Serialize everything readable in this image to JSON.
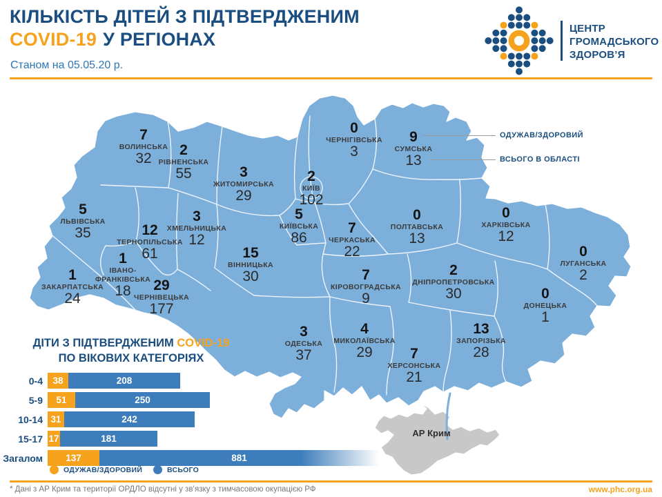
{
  "header": {
    "title_line1": "КІЛЬКІСТЬ ДІТЕЙ З ПІДТВЕРДЖЕНИМ",
    "title_covid": "COVID-19",
    "title_line2_rest": "У РЕГІОНАХ",
    "subtitle": "Станом на 05.05.20 р.",
    "logo_line1": "ЦЕНТР",
    "logo_line2": "ГРОМАДСЬКОГО",
    "logo_line3": "ЗДОРОВ’Я"
  },
  "map": {
    "callout_recovered": "ОДУЖАВ/ЗДОРОВИЙ",
    "callout_total": "ВСЬОГО В ОБЛАСТІ",
    "crimea_label": "АР Крим"
  },
  "age_chart": {
    "title_prefix": "ДІТИ З ПІДТВЕРДЖЕНИМ",
    "title_covid": "COVID-19",
    "title_line2": "ПО ВІКОВИХ КАТЕГОРІЯХ"
  },
  "footer": {
    "note": "* Дані з АР Крим та території ОРДЛО відсутні у зв’язку з тимчасовою окупацією РФ",
    "website": "www.phc.org.ua"
  },
  "colors": {
    "accent_orange": "#F7A21C",
    "dark_blue": "#1B4E80",
    "bar_blue": "#3D7DBB",
    "map_blue": "#7DAFDB",
    "crimea_gray": "#C8C8C8"
  },
  "chart_data": [
    {
      "type": "table",
      "title": "КІЛЬКІСТЬ ДІТЕЙ З ПІДТВЕРДЖЕНИМ COVID-19 У РЕГІОНАХ — станом на 05.05.20",
      "columns": [
        "регіон",
        "одужав/здоровий",
        "всього в області"
      ],
      "rows": [
        [
          "ВОЛИНСЬКА",
          7,
          32
        ],
        [
          "РІВНЕНСЬКА",
          2,
          55
        ],
        [
          "ЖИТОМИРСЬКА",
          3,
          29
        ],
        [
          "ЧЕРНІГІВСЬКА",
          0,
          3
        ],
        [
          "СУМСЬКА",
          9,
          13
        ],
        [
          "КИЇВ",
          2,
          102
        ],
        [
          "КИЇВСЬКА",
          5,
          86
        ],
        [
          "ЛЬВІВСЬКА",
          5,
          35
        ],
        [
          "ХМЕЛЬНИЦЬКА",
          3,
          12
        ],
        [
          "ТЕРНОПІЛЬСЬКА",
          12,
          61
        ],
        [
          "ІВАНО-ФРАНКІВСЬКА",
          1,
          18
        ],
        [
          "ЗАКАРПАТСЬКА",
          1,
          24
        ],
        [
          "ЧЕРНІВЕЦЬКА",
          29,
          177
        ],
        [
          "ВІННИЦЬКА",
          15,
          30
        ],
        [
          "ЧЕРКАСЬКА",
          7,
          22
        ],
        [
          "ПОЛТАВСЬКА",
          0,
          13
        ],
        [
          "ХАРКІВСЬКА",
          0,
          12
        ],
        [
          "ЛУГАНСЬКА",
          0,
          2
        ],
        [
          "ДНІПРОПЕТРОВСЬКА",
          2,
          30
        ],
        [
          "ДОНЕЦЬКА",
          0,
          1
        ],
        [
          "КІРОВОГРАДСЬКА",
          7,
          9
        ],
        [
          "ОДЕСЬКА",
          3,
          37
        ],
        [
          "МИКОЛАЇВСЬКА",
          4,
          29
        ],
        [
          "ЗАПОРІЗЬКА",
          13,
          28
        ],
        [
          "ХЕРСОНСЬКА",
          7,
          21
        ]
      ]
    },
    {
      "type": "bar",
      "orientation": "horizontal",
      "title": "ДІТИ З ПІДТВЕРДЖЕНИМ COVID-19 ПО ВІКОВИХ КАТЕГОРІЯХ",
      "categories": [
        "0-4",
        "5-9",
        "10-14",
        "15-17",
        "Загалом"
      ],
      "series": [
        {
          "name": "ОДУЖАВ/ЗДОРОВИЙ",
          "color": "#F7A21C",
          "values": [
            38,
            51,
            31,
            17,
            137
          ]
        },
        {
          "name": "ВСЬОГО",
          "color": "#3D7DBB",
          "values": [
            208,
            250,
            242,
            181,
            881
          ]
        }
      ],
      "legend": [
        "ОДУЖАВ/ЗДОРОВИЙ",
        "ВСЬОГО"
      ],
      "legend_position": "bottom"
    }
  ]
}
